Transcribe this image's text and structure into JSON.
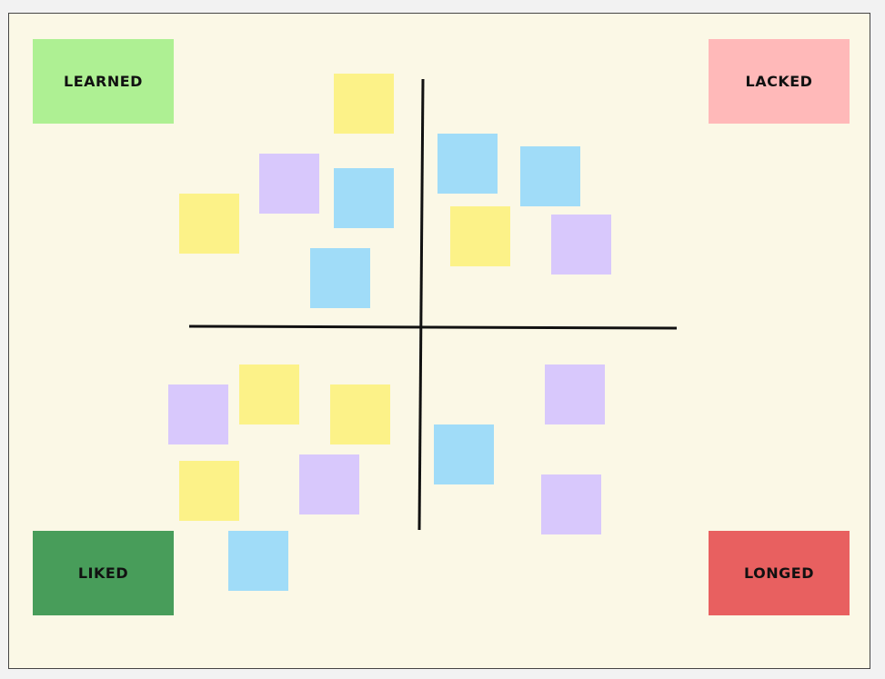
{
  "quadrants": [
    {
      "label": "LEARNED"
    },
    {
      "label": "LACKED"
    },
    {
      "label": "LIKED"
    },
    {
      "label": "LONGED"
    }
  ]
}
